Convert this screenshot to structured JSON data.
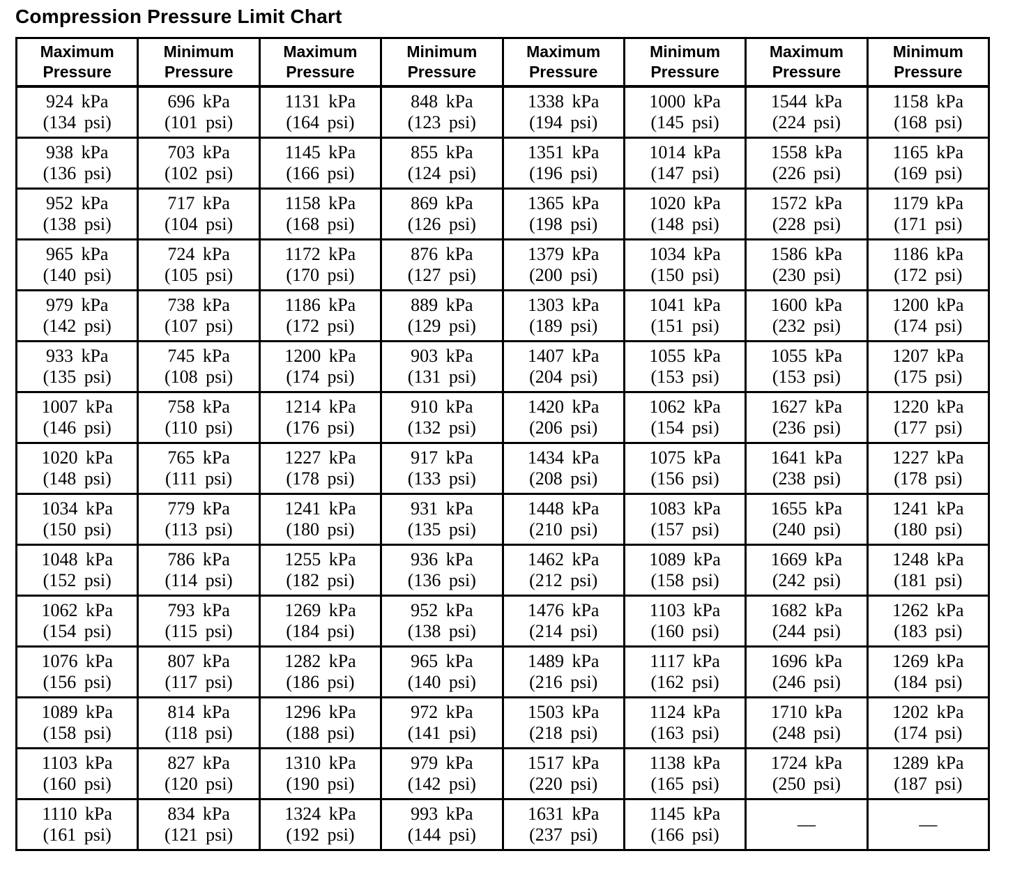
{
  "title": "Compression Pressure Limit Chart",
  "table": {
    "column_headers": [
      "Maximum\nPressure",
      "Minimum\nPressure",
      "Maximum\nPressure",
      "Minimum\nPressure",
      "Maximum\nPressure",
      "Minimum\nPressure",
      "Maximum\nPressure",
      "Minimum\nPressure"
    ],
    "empty_cell_symbol": "—",
    "rows": [
      [
        "924 kPa\n(134 psi)",
        "696 kPa\n(101 psi)",
        "1131 kPa\n(164 psi)",
        "848 kPa\n(123 psi)",
        "1338 kPa\n(194 psi)",
        "1000 kPa\n(145 psi)",
        "1544 kPa\n(224 psi)",
        "1158 kPa\n(168 psi)"
      ],
      [
        "938 kPa\n(136 psi)",
        "703 kPa\n(102 psi)",
        "1145 kPa\n(166 psi)",
        "855 kPa\n(124 psi)",
        "1351 kPa\n(196 psi)",
        "1014 kPa\n(147 psi)",
        "1558 kPa\n(226 psi)",
        "1165 kPa\n(169 psi)"
      ],
      [
        "952 kPa\n(138 psi)",
        "717 kPa\n(104 psi)",
        "1158 kPa\n(168 psi)",
        "869 kPa\n(126 psi)",
        "1365 kPa\n(198 psi)",
        "1020 kPa\n(148 psi)",
        "1572 kPa\n(228 psi)",
        "1179 kPa\n(171 psi)"
      ],
      [
        "965 kPa\n(140 psi)",
        "724 kPa\n(105 psi)",
        "1172 kPa\n(170 psi)",
        "876 kPa\n(127 psi)",
        "1379 kPa\n(200 psi)",
        "1034 kPa\n(150 psi)",
        "1586 kPa\n(230 psi)",
        "1186 kPa\n(172 psi)"
      ],
      [
        "979 kPa\n(142 psi)",
        "738 kPa\n(107 psi)",
        "1186 kPa\n(172 psi)",
        "889 kPa\n(129 psi)",
        "1303 kPa\n(189 psi)",
        "1041 kPa\n(151 psi)",
        "1600 kPa\n(232 psi)",
        "1200 kPa\n(174 psi)"
      ],
      [
        "933 kPa\n(135 psi)",
        "745 kPa\n(108 psi)",
        "1200 kPa\n(174 psi)",
        "903 kPa\n(131 psi)",
        "1407 kPa\n(204 psi)",
        "1055 kPa\n(153 psi)",
        "1055 kPa\n(153 psi)",
        "1207 kPa\n(175 psi)"
      ],
      [
        "1007 kPa\n(146 psi)",
        "758 kPa\n(110 psi)",
        "1214 kPa\n(176 psi)",
        "910 kPa\n(132 psi)",
        "1420 kPa\n(206 psi)",
        "1062 kPa\n(154 psi)",
        "1627 kPa\n(236 psi)",
        "1220 kPa\n(177 psi)"
      ],
      [
        "1020 kPa\n(148 psi)",
        "765 kPa\n(111 psi)",
        "1227 kPa\n(178 psi)",
        "917 kPa\n(133 psi)",
        "1434 kPa\n(208 psi)",
        "1075 kPa\n(156 psi)",
        "1641 kPa\n(238 psi)",
        "1227 kPa\n(178 psi)"
      ],
      [
        "1034 kPa\n(150 psi)",
        "779 kPa\n(113 psi)",
        "1241 kPa\n(180 psi)",
        "931 kPa\n(135 psi)",
        "1448 kPa\n(210 psi)",
        "1083 kPa\n(157 psi)",
        "1655 kPa\n(240 psi)",
        "1241 kPa\n(180 psi)"
      ],
      [
        "1048 kPa\n(152 psi)",
        "786 kPa\n(114 psi)",
        "1255 kPa\n(182 psi)",
        "936 kPa\n(136 psi)",
        "1462 kPa\n(212 psi)",
        "1089 kPa\n(158 psi)",
        "1669 kPa\n(242 psi)",
        "1248 kPa\n(181 psi)"
      ],
      [
        "1062 kPa\n(154 psi)",
        "793 kPa\n(115 psi)",
        "1269 kPa\n(184 psi)",
        "952 kPa\n(138 psi)",
        "1476 kPa\n(214 psi)",
        "1103 kPa\n(160 psi)",
        "1682 kPa\n(244 psi)",
        "1262 kPa\n(183 psi)"
      ],
      [
        "1076 kPa\n(156 psi)",
        "807 kPa\n(117 psi)",
        "1282 kPa\n(186 psi)",
        "965 kPa\n(140 psi)",
        "1489 kPa\n(216 psi)",
        "1117 kPa\n(162 psi)",
        "1696 kPa\n(246 psi)",
        "1269 kPa\n(184 psi)"
      ],
      [
        "1089 kPa\n(158 psi)",
        "814 kPa\n(118 psi)",
        "1296 kPa\n(188 psi)",
        "972 kPa\n(141 psi)",
        "1503 kPa\n(218 psi)",
        "1124 kPa\n(163 psi)",
        "1710 kPa\n(248 psi)",
        "1202 kPa\n(174 psi)"
      ],
      [
        "1103 kPa\n(160 psi)",
        "827 kPa\n(120 psi)",
        "1310 kPa\n(190 psi)",
        "979 kPa\n(142 psi)",
        "1517 kPa\n(220 psi)",
        "1138 kPa\n(165 psi)",
        "1724 kPa\n(250 psi)",
        "1289 kPa\n(187 psi)"
      ],
      [
        "1110 kPa\n(161 psi)",
        "834 kPa\n(121 psi)",
        "1324 kPa\n(192 psi)",
        "993 kPa\n(144 psi)",
        "1631 kPa\n(237 psi)",
        "1145 kPa\n(166 psi)",
        "—",
        "—"
      ]
    ]
  }
}
